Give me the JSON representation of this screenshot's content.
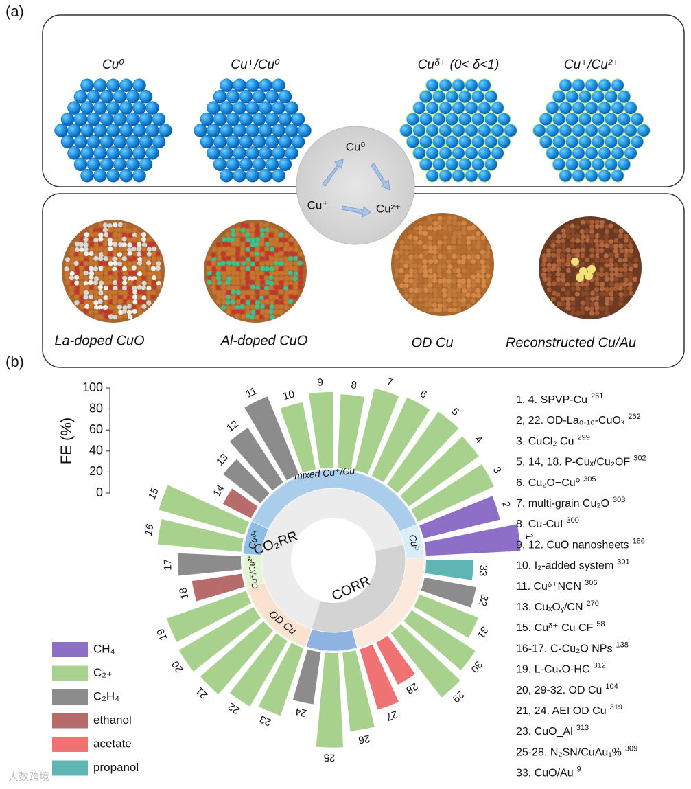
{
  "panel_labels": [
    "(a)",
    "(b)"
  ],
  "panel_a": {
    "top_labels": [
      "Cu⁰",
      "Cu⁺/Cu⁰",
      "Cuᵟ⁺ (0< δ<1)",
      "Cu⁺/Cu²⁺"
    ],
    "bottom_labels": [
      "La-doped CuO",
      "Al-doped CuO",
      "OD Cu",
      "Reconstructed Cu/Au"
    ],
    "cycle": [
      "Cu⁰",
      "Cu⁺",
      "Cu²⁺"
    ]
  },
  "chart_data": {
    "type": "radial_bar",
    "y_label": "FE (%)",
    "ylim": [
      0,
      100
    ],
    "yticks": [
      0,
      20,
      40,
      60,
      80,
      100
    ],
    "categories": [
      "1",
      "2",
      "3",
      "4",
      "5",
      "6",
      "7",
      "8",
      "9",
      "10",
      "11",
      "12",
      "13",
      "14",
      "15",
      "16",
      "17",
      "18",
      "19",
      "20",
      "21",
      "22",
      "23",
      "24",
      "25",
      "26",
      "27",
      "28",
      "29",
      "30",
      "31",
      "32",
      "33"
    ],
    "series": [
      {
        "name": "CH₄",
        "color": "#8e6fc8",
        "values": [
          90,
          75,
          null,
          null,
          null,
          null,
          null,
          null,
          null,
          null,
          null,
          null,
          null,
          null,
          null,
          null,
          null,
          null,
          null,
          null,
          null,
          null,
          null,
          null,
          null,
          null,
          null,
          null,
          null,
          null,
          null,
          null,
          null
        ]
      },
      {
        "name": "C₂₊",
        "color": "#a9d18e",
        "values": [
          null,
          null,
          80,
          82,
          85,
          82,
          80,
          70,
          72,
          65,
          null,
          null,
          null,
          null,
          85,
          80,
          null,
          null,
          80,
          82,
          80,
          72,
          68,
          null,
          90,
          75,
          null,
          null,
          78,
          72,
          60,
          null,
          null
        ]
      },
      {
        "name": "C₂H₄",
        "color": "#8c8c8c",
        "values": [
          null,
          null,
          null,
          null,
          null,
          null,
          null,
          null,
          null,
          null,
          80,
          62,
          45,
          null,
          null,
          null,
          60,
          null,
          null,
          null,
          null,
          null,
          null,
          50,
          null,
          null,
          null,
          null,
          null,
          null,
          null,
          50,
          null
        ]
      },
      {
        "name": "ethanol",
        "color": "#b86b6b",
        "values": [
          null,
          null,
          null,
          null,
          null,
          null,
          null,
          null,
          null,
          null,
          null,
          null,
          null,
          30,
          null,
          null,
          null,
          48,
          null,
          null,
          null,
          null,
          null,
          null,
          null,
          null,
          null,
          null,
          null,
          null,
          null,
          null,
          null
        ]
      },
      {
        "name": "acetate",
        "color": "#f07272",
        "values": [
          null,
          null,
          null,
          null,
          null,
          null,
          null,
          null,
          null,
          null,
          null,
          null,
          null,
          null,
          null,
          null,
          null,
          null,
          null,
          null,
          null,
          null,
          null,
          null,
          null,
          null,
          60,
          45,
          null,
          null,
          null,
          null,
          null
        ]
      },
      {
        "name": "propanol",
        "color": "#5fb4b4",
        "values": [
          null,
          null,
          null,
          null,
          null,
          null,
          null,
          null,
          null,
          null,
          null,
          null,
          null,
          null,
          null,
          null,
          null,
          null,
          null,
          null,
          null,
          null,
          null,
          null,
          null,
          null,
          null,
          null,
          null,
          null,
          null,
          null,
          45
        ]
      }
    ],
    "ring_labels": [
      "mixed Cu⁺/Cu⁰",
      "Cu⁰",
      "Cuᵟ⁺",
      "Cu⁺/Cu²⁺",
      "OD Cu",
      "CO₂RR",
      "CORR"
    ],
    "references": [
      {
        "name": "1, 4. SPVP-Cu",
        "ref": "261"
      },
      {
        "name": "2, 22. OD-La₀.₁₀-CuOₓ",
        "ref": "262"
      },
      {
        "name": "3. CuCl₂ Cu",
        "ref": "299"
      },
      {
        "name": "5, 14, 18. P-Cuₓ/Cu₂OF",
        "ref": "302"
      },
      {
        "name": "6. Cu₂O−Cu⁰",
        "ref": "305"
      },
      {
        "name": "7. multi-grain Cu₂O",
        "ref": "303"
      },
      {
        "name": "8. Cu-CuI",
        "ref": "300"
      },
      {
        "name": "9, 12. CuO nanosheets",
        "ref": "186"
      },
      {
        "name": "10. I₂-added system",
        "ref": "301"
      },
      {
        "name": "11. Cuᵟ⁺NCN",
        "ref": "306"
      },
      {
        "name": "13. CuₓOᵧ/CN",
        "ref": "270"
      },
      {
        "name": "15. Cuᵟ⁺ Cu CF",
        "ref": "58"
      },
      {
        "name": "16-17. C-Cu₂O NPs",
        "ref": "138"
      },
      {
        "name": "19. L-CuₓO-HC",
        "ref": "312"
      },
      {
        "name": "20, 29-32.  OD Cu",
        "ref": "104"
      },
      {
        "name": "21, 24. AEI OD Cu",
        "ref": "319"
      },
      {
        "name": "23. CuO_Al",
        "ref": "313"
      },
      {
        "name": "25-28. N₂SN/CuAu₁%",
        "ref": "309"
      },
      {
        "name": "33. CuO/Au",
        "ref": "9"
      }
    ]
  },
  "watermark": "大数跨境"
}
